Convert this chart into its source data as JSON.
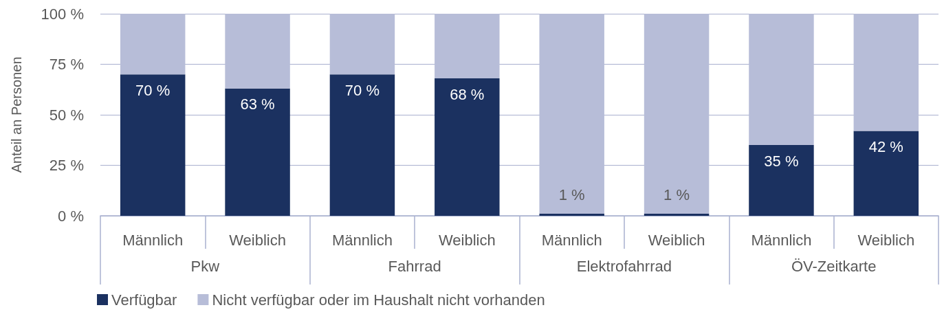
{
  "chart_data": {
    "type": "bar",
    "stacked": true,
    "ylabel": "Anteil an Personen",
    "categories": [
      "Männlich",
      "Weiblich",
      "Männlich",
      "Weiblich",
      "Männlich",
      "Weiblich",
      "Männlich",
      "Weiblich"
    ],
    "annotations": [
      "Pkw",
      "Fahrrad",
      "Elektrofahrrad",
      "ÖV-Zeitkarte"
    ],
    "series": [
      {
        "name": "Verfügbar",
        "color": "#1b3160",
        "values": [
          70,
          63,
          70,
          68,
          1,
          1,
          35,
          42
        ],
        "value_labels": [
          "70 %",
          "63 %",
          "70 %",
          "68 %",
          "1 %",
          "1 %",
          "35 %",
          "42 %"
        ]
      },
      {
        "name": "Nicht verfügbar oder im Haushalt nicht vorhanden",
        "color": "#b7bdd8",
        "values": [
          30,
          37,
          30,
          32,
          99,
          99,
          65,
          58
        ]
      }
    ],
    "ylim": [
      0,
      100
    ],
    "yticks": [
      {
        "value": 0,
        "label": "0 %"
      },
      {
        "value": 25,
        "label": "25 %"
      },
      {
        "value": 50,
        "label": "50 %"
      },
      {
        "value": 75,
        "label": "75 %"
      },
      {
        "value": 100,
        "label": "100 %"
      }
    ],
    "grid": "y",
    "legend": "bottom left"
  }
}
